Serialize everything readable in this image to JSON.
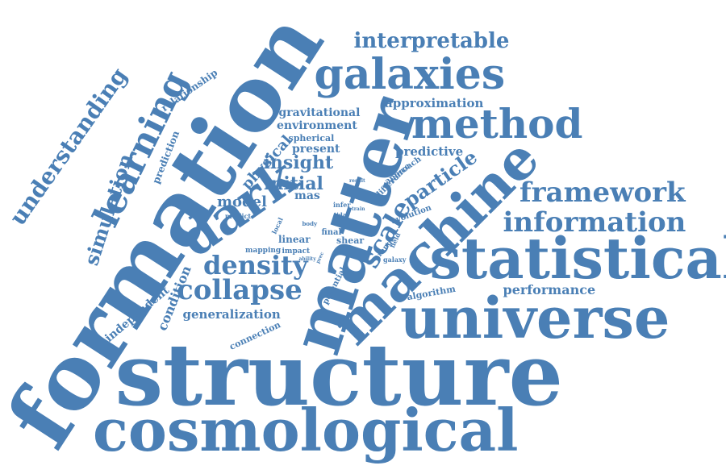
{
  "color": "#4a7fb5",
  "words": [
    {
      "text": "structure"
    },
    {
      "text": "formation"
    },
    {
      "text": "matter"
    },
    {
      "text": "cosmological"
    },
    {
      "text": "machine"
    },
    {
      "text": "statistical"
    },
    {
      "text": "universe"
    },
    {
      "text": "dark"
    },
    {
      "text": "galaxies"
    },
    {
      "text": "method"
    },
    {
      "text": "learning"
    },
    {
      "text": "framework"
    },
    {
      "text": "information"
    },
    {
      "text": "understanding"
    },
    {
      "text": "collapse"
    },
    {
      "text": "density"
    },
    {
      "text": "scale"
    },
    {
      "text": "interpretable"
    },
    {
      "text": "simulation"
    },
    {
      "text": "particle"
    },
    {
      "text": "insight"
    },
    {
      "text": "initial"
    },
    {
      "text": "model"
    },
    {
      "text": "physical"
    },
    {
      "text": "gravitational"
    },
    {
      "text": "environment"
    },
    {
      "text": "approximation"
    },
    {
      "text": "predictive"
    },
    {
      "text": "present"
    },
    {
      "text": "spherical"
    },
    {
      "text": "generalization"
    },
    {
      "text": "condition"
    },
    {
      "text": "independent"
    },
    {
      "text": "prediction"
    },
    {
      "text": "relationship"
    },
    {
      "text": "performance"
    },
    {
      "text": "connection"
    },
    {
      "text": "algorithm"
    },
    {
      "text": "evolution"
    },
    {
      "text": "potential"
    },
    {
      "text": "approach"
    },
    {
      "text": "difference"
    },
    {
      "text": "linear"
    },
    {
      "text": "mapping"
    },
    {
      "text": "final"
    },
    {
      "text": "shear"
    },
    {
      "text": "impact"
    },
    {
      "text": "mas"
    },
    {
      "text": "predict"
    },
    {
      "text": "local"
    },
    {
      "text": "body"
    },
    {
      "text": "infer"
    },
    {
      "text": "tidal"
    },
    {
      "text": "train"
    },
    {
      "text": "field"
    },
    {
      "text": "range"
    },
    {
      "text": "galaxy"
    },
    {
      "text": "ability"
    },
    {
      "text": "result"
    },
    {
      "text": "prec"
    }
  ]
}
